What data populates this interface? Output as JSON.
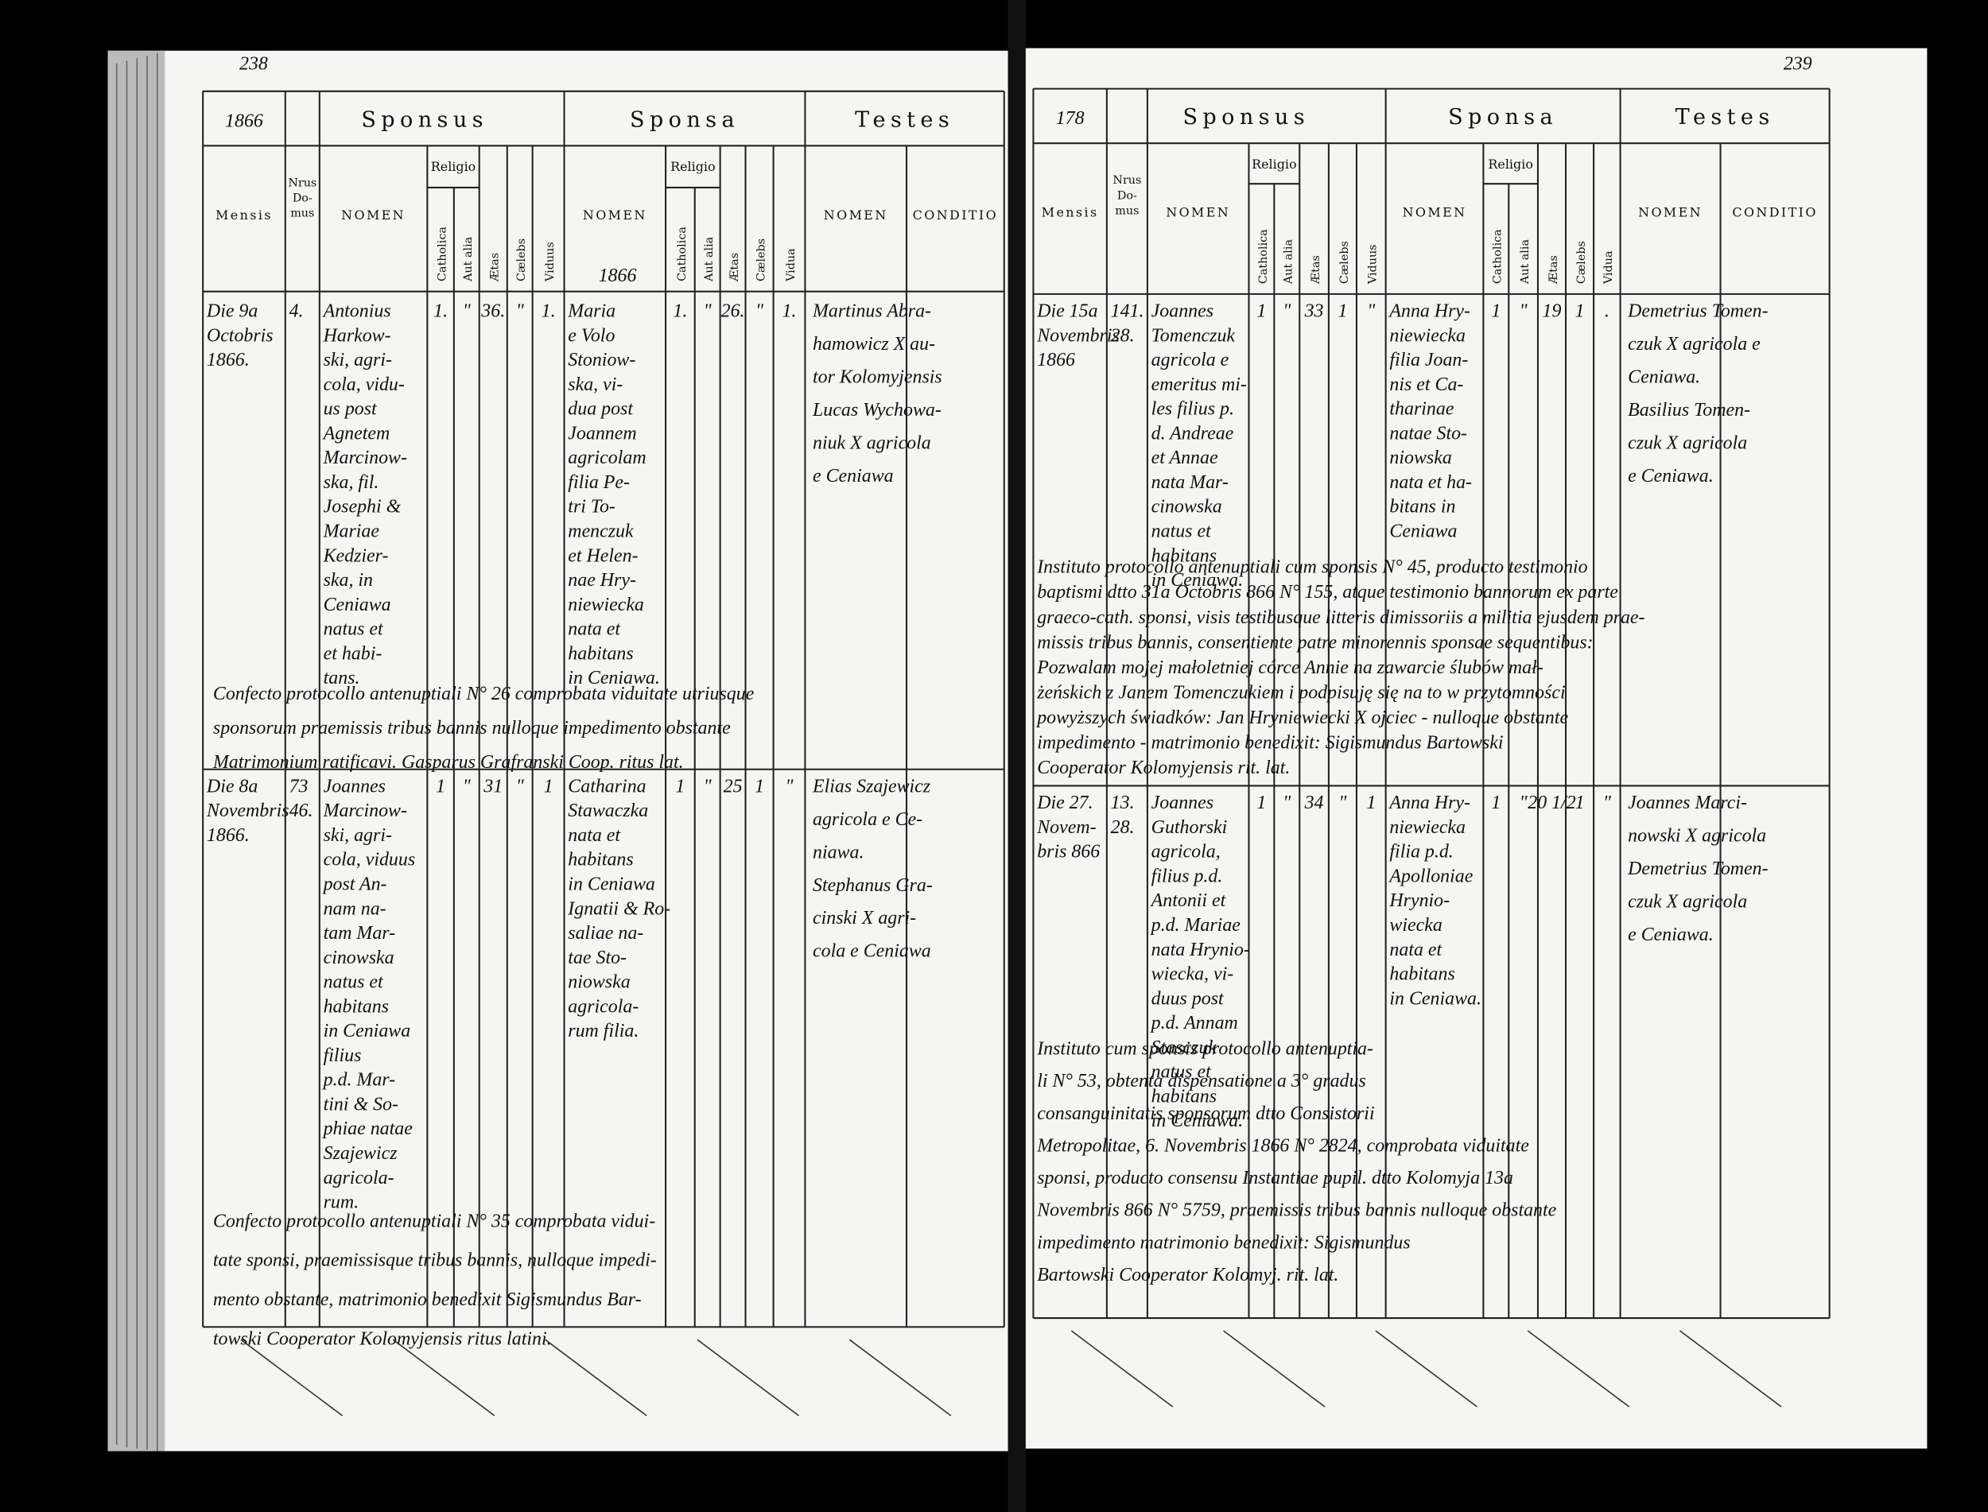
{
  "left_page": {
    "page_number": "238",
    "corner_year": "1866",
    "header_year": "1866",
    "headers": {
      "groups": [
        "Sponsus",
        "Sponsa",
        "Testes"
      ],
      "columns": [
        "Mensis",
        [
          "Nrus",
          "Do-",
          "mus"
        ],
        "NOMEN",
        "Catholica",
        "Aut alia",
        "Ætas",
        "Cælebs",
        "Viduus",
        "NOMEN",
        "Catholica",
        "Aut alia",
        "Ætas",
        "Cælebs",
        "Vidua",
        "NOMEN",
        "CONDITIO"
      ],
      "religio": [
        "Religio",
        "Religio"
      ]
    },
    "entries": [
      {
        "mensis": [
          "Die 9a",
          "Octobris",
          "1866."
        ],
        "domus": [
          "4."
        ],
        "sponsus_nomen": [
          "Antonius",
          "Harkow-",
          "ski, agri-",
          "cola, vidu-",
          "us post",
          "Agnetem",
          "Marcinow-",
          "ska, fil.",
          "Josephi &",
          "Mariae",
          "Kedzier-",
          "ska, in",
          "Ceniawa",
          "natus et",
          "et habi-",
          "tans."
        ],
        "sponsus_catholica": [
          "1."
        ],
        "sponsus_aut_alia": [
          "\""
        ],
        "sponsus_aetas": [
          "36."
        ],
        "sponsus_caelebs": [
          "\""
        ],
        "sponsus_viduus": [
          "1."
        ],
        "sponsa_nomen": [
          "Maria",
          "e Volo",
          "Stoniow-",
          "ska, vi-",
          "dua post",
          "Joannem",
          "agricolam",
          "filia Pe-",
          "tri To-",
          "menczuk",
          "et Helen-",
          "nae Hry-",
          "niewiecka",
          "nata et",
          "habitans",
          "in Ceniawa."
        ],
        "sponsa_catholica": [
          "1."
        ],
        "sponsa_aut_alia": [
          "\""
        ],
        "sponsa_aetas": [
          "26."
        ],
        "sponsa_caelebs": [
          "\""
        ],
        "sponsa_vidua": [
          "1."
        ],
        "testes": [
          "Martinus Abra-",
          "hamowicz X au-",
          "tor Kolomyjensis",
          "Lucas Wychowa-",
          "niuk X agricola",
          "e Ceniawa"
        ]
      },
      {
        "mensis": [
          "Die 8a",
          "Novembris",
          "1866."
        ],
        "domus": [
          "73",
          "46."
        ],
        "sponsus_nomen": [
          "Joannes",
          "Marcinow-",
          "ski, agri-",
          "cola, viduus",
          "post An-",
          "nam na-",
          "tam Mar-",
          "cinowska",
          "natus et",
          "habitans",
          "in Ceniawa",
          "filius",
          "p.d. Mar-",
          "tini & So-",
          "phiae natae",
          "Szajewicz",
          "agricola-",
          "rum."
        ],
        "sponsus_catholica": [
          "1"
        ],
        "sponsus_aut_alia": [
          "\""
        ],
        "sponsus_aetas": [
          "31"
        ],
        "sponsus_caelebs": [
          "\""
        ],
        "sponsus_viduus": [
          "1"
        ],
        "sponsa_nomen": [
          "Catharina",
          "Stawaczka",
          "nata et",
          "habitans",
          "in Ceniawa",
          "Ignatii & Ro-",
          "saliae na-",
          "tae Sto-",
          "niowska",
          "agricola-",
          "rum filia."
        ],
        "sponsa_catholica": [
          "1"
        ],
        "sponsa_aut_alia": [
          "\""
        ],
        "sponsa_aetas": [
          "25"
        ],
        "sponsa_caelebs": [
          "1"
        ],
        "sponsa_vidua": [
          "\""
        ],
        "testes": [
          "Elias Szajewicz",
          "agricola e Ce-",
          "niawa.",
          "Stephanus Gra-",
          "cinski X agri-",
          "cola e Ceniawa"
        ]
      }
    ],
    "notes": [
      [
        "Confecto protocollo antenuptiali N° 26 comprobata viduitate utriusque",
        "sponsorum praemissis tribus bannis nulloque impedimento obstante",
        "Matrimonium ratificavi. Gasparus Grafranski Coop. ritus lat."
      ],
      [
        "Confecto protocollo antenuptiali N° 35 comprobata vidui-",
        "tate sponsi, praemissisque tribus bannis, nulloque impedi-",
        "mento obstante, matrimonio benedixit Sigismundus Bar-",
        "towski Cooperator Kolomyjensis ritus latini."
      ]
    ]
  },
  "right_page": {
    "page_number": "239",
    "corner_year": "178",
    "headers": {
      "groups": [
        "Sponsus",
        "Sponsa",
        "Testes"
      ],
      "columns": [
        "Mensis",
        [
          "Nrus",
          "Do-",
          "mus"
        ],
        "NOMEN",
        "Catholica",
        "Aut alia",
        "Ætas",
        "Cælebs",
        "Viduus",
        "NOMEN",
        "Catholica",
        "Aut alia",
        "Ætas",
        "Cælebs",
        "Vidua",
        "NOMEN",
        "CONDITIO"
      ],
      "religio": [
        "Religio",
        "Religio"
      ]
    },
    "entries": [
      {
        "mensis": [
          "Die 15a",
          "Novembris",
          "1866"
        ],
        "domus": [
          "141.",
          "28."
        ],
        "sponsus_nomen": [
          "Joannes",
          "Tomenczuk",
          "agricola e",
          "emeritus mi-",
          "les filius p.",
          "d. Andreae",
          "et Annae",
          "nata Mar-",
          "cinowska",
          "natus et",
          "habitans",
          "in Ceniawa."
        ],
        "sponsus_catholica": [
          "1"
        ],
        "sponsus_aut_alia": [
          "\""
        ],
        "sponsus_aetas": [
          "33"
        ],
        "sponsus_caelebs": [
          "1"
        ],
        "sponsus_viduus": [
          "\""
        ],
        "sponsa_nomen": [
          "Anna Hry-",
          "niewiecka",
          "filia Joan-",
          "nis et Ca-",
          "tharinae",
          "natae Sto-",
          "niowska",
          "nata et ha-",
          "bitans in",
          "Ceniawa"
        ],
        "sponsa_catholica": [
          "1"
        ],
        "sponsa_aut_alia": [
          "\""
        ],
        "sponsa_aetas": [
          "19"
        ],
        "sponsa_caelebs": [
          "1"
        ],
        "sponsa_vidua": [
          "."
        ],
        "testes": [
          "Demetrius Tomen-",
          "czuk X agricola e",
          "Ceniawa.",
          "Basilius Tomen-",
          "czuk X agricola",
          "e Ceniawa."
        ]
      },
      {
        "mensis": [
          "Die 27.",
          "Novem-",
          "bris 866"
        ],
        "domus": [
          "13.",
          "28."
        ],
        "sponsus_nomen": [
          "Joannes",
          "Guthorski",
          "agricola,",
          "filius p.d.",
          "Antonii et",
          "p.d. Mariae",
          "nata Hrynio-",
          "wiecka, vi-",
          "duus post",
          "p.d. Annam",
          "Stasczuk",
          "natus et",
          "habitans",
          "in Ceniawa."
        ],
        "sponsus_catholica": [
          "1"
        ],
        "sponsus_aut_alia": [
          "\""
        ],
        "sponsus_aetas": [
          "34"
        ],
        "sponsus_caelebs": [
          "\""
        ],
        "sponsus_viduus": [
          "1"
        ],
        "sponsa_nomen": [
          "Anna Hry-",
          "niewiecka",
          "filia p.d.",
          "Apolloniae",
          "Hrynio-",
          "wiecka",
          "nata et",
          "habitans",
          "in Ceniawa."
        ],
        "sponsa_catholica": [
          "1"
        ],
        "sponsa_aut_alia": [
          "\""
        ],
        "sponsa_aetas": [
          "20 1/2"
        ],
        "sponsa_caelebs": [
          "1"
        ],
        "sponsa_vidua": [
          "\""
        ],
        "testes": [
          "Joannes Marci-",
          "nowski X agricola",
          "Demetrius Tomen-",
          "czuk X agricola",
          "e Ceniawa."
        ]
      }
    ],
    "notes": [
      [
        "Instituto protocollo antenuptiali cum sponsis N° 45, producto testimonio",
        "baptismi dtto 31a Octobris 866 N° 155, atque testimonio bannorum ex parte",
        "graeco-cath. sponsi, visis testibusque litteris dimissoriis a militia ejusdem prae-",
        "missis tribus bannis, consentiente patre minorennis sponsae sequentibus:",
        "Pozwalam mojej małoletniej córce Annie na zawarcie ślubów mał-",
        "żeńskich z Janem Tomenczukiem i podpisuję się na to w przytomności",
        "powyższych świadków: Jan Hryniewiecki X ojciec - nulloque obstante",
        "impedimento - matrimonio benedixit: Sigismundus Bartowski",
        "Cooperator Kolomyjensis rit. lat."
      ],
      [
        "Instituto cum sponsis protocollo antenuptia-",
        "li N° 53, obtenta dispensatione a 3° gradus",
        "consanguinitatis sponsorum dtto Consistorii",
        "Metropolitae, 6. Novembris 1866 N° 2824, comprobata viduitate",
        "sponsi, producto consensu Instantiae pupil. dtto Kolomyja 13a",
        "Novembris 866 N° 5759, praemissis tribus bannis nulloque obstante",
        "impedimento matrimonio benedixit: Sigismundus",
        "Bartowski Cooperator Kolomyj. rit. lat."
      ]
    ]
  }
}
